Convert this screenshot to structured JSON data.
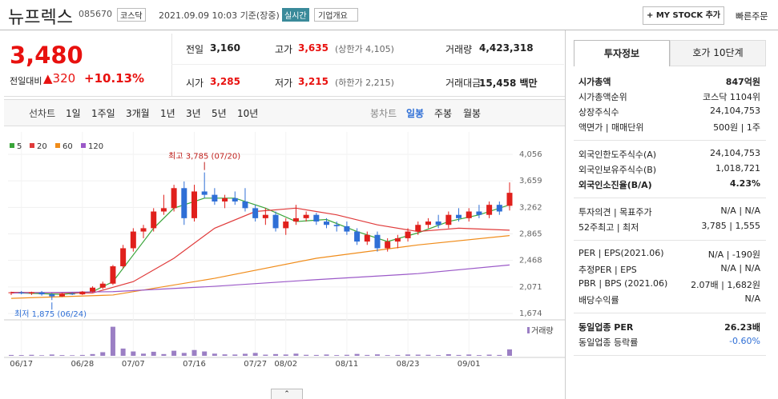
{
  "header": {
    "name": "뉴프렉스",
    "code": "085670",
    "market": "코스닥",
    "time": "2021.09.09 10:03 기준(장중)",
    "realtime": "실시간",
    "company": "기업개요",
    "mystock": "+ MY STOCK 추가",
    "order": "빠른주문"
  },
  "quote": {
    "price": "3,480",
    "change_label": "전일대비",
    "change": "▲320",
    "rate": "+10.13%",
    "color": "#e8110f",
    "cells": [
      {
        "label": "전일",
        "value": "3,160"
      },
      {
        "label": "고가",
        "value": "3,635",
        "extra": "(상한가 4,105)",
        "color": "#e8110f"
      },
      {
        "label": "거래량",
        "value": "4,423,318"
      },
      {
        "label": "시가",
        "value": "3,285",
        "color": "#e8110f"
      },
      {
        "label": "저가",
        "value": "3,215",
        "extra": "(하한가 2,215)",
        "color": "#e8110f"
      },
      {
        "label": "거래대금",
        "value": "15,458 백만"
      }
    ]
  },
  "tabs": {
    "line": "선차트",
    "periods": [
      "1일",
      "1주일",
      "3개월",
      "1년",
      "3년",
      "5년",
      "10년"
    ],
    "candle": "봉차트",
    "candle_periods": [
      "일봉",
      "주봉",
      "월봉"
    ]
  },
  "chart_data": {
    "type": "candlestick",
    "up_color": "#e0201c",
    "down_color": "#2f6fd6",
    "candles": [
      [
        1980,
        2000,
        1950,
        1990
      ],
      [
        1990,
        2010,
        1960,
        1975
      ],
      [
        1975,
        2000,
        1950,
        1990
      ],
      [
        1990,
        2010,
        1940,
        1960
      ],
      [
        1960,
        1980,
        1875,
        1930
      ],
      [
        1930,
        1980,
        1920,
        1970
      ],
      [
        1970,
        1990,
        1950,
        1960
      ],
      [
        1960,
        2010,
        1950,
        2000
      ],
      [
        2000,
        2080,
        1990,
        2060
      ],
      [
        2060,
        2150,
        2040,
        2120
      ],
      [
        2120,
        2400,
        2100,
        2380
      ],
      [
        2380,
        2700,
        2350,
        2650
      ],
      [
        2650,
        2950,
        2600,
        2900
      ],
      [
        2900,
        3000,
        2800,
        2950
      ],
      [
        2950,
        3250,
        2900,
        3200
      ],
      [
        3200,
        3450,
        3150,
        3250
      ],
      [
        3250,
        3600,
        3200,
        3550
      ],
      [
        3550,
        3650,
        3000,
        3100
      ],
      [
        3100,
        3600,
        3050,
        3500
      ],
      [
        3500,
        3785,
        3400,
        3450
      ],
      [
        3450,
        3550,
        3300,
        3350
      ],
      [
        3350,
        3450,
        3250,
        3400
      ],
      [
        3400,
        3500,
        3300,
        3350
      ],
      [
        3350,
        3550,
        3200,
        3250
      ],
      [
        3250,
        3300,
        3050,
        3100
      ],
      [
        3100,
        3250,
        3000,
        3150
      ],
      [
        3150,
        3200,
        2900,
        2950
      ],
      [
        2950,
        3100,
        2850,
        3050
      ],
      [
        3050,
        3300,
        3000,
        3100
      ],
      [
        3100,
        3200,
        3050,
        3150
      ],
      [
        3150,
        3180,
        3000,
        3050
      ],
      [
        3050,
        3100,
        2950,
        3000
      ],
      [
        3000,
        3050,
        2900,
        2980
      ],
      [
        2980,
        3050,
        2850,
        2900
      ],
      [
        2900,
        2950,
        2700,
        2750
      ],
      [
        2750,
        2900,
        2700,
        2850
      ],
      [
        2850,
        2900,
        2600,
        2650
      ],
      [
        2650,
        2800,
        2600,
        2750
      ],
      [
        2750,
        2850,
        2650,
        2800
      ],
      [
        2800,
        2950,
        2750,
        2900
      ],
      [
        2900,
        3050,
        2850,
        3000
      ],
      [
        3000,
        3100,
        2950,
        3050
      ],
      [
        3050,
        3150,
        2950,
        3000
      ],
      [
        3000,
        3200,
        2950,
        3150
      ],
      [
        3150,
        3250,
        3050,
        3100
      ],
      [
        3100,
        3250,
        3050,
        3200
      ],
      [
        3200,
        3300,
        3100,
        3150
      ],
      [
        3150,
        3350,
        3100,
        3300
      ],
      [
        3300,
        3350,
        3150,
        3200
      ],
      [
        3285,
        3635,
        3215,
        3480
      ]
    ],
    "volume": [
      600000,
      500000,
      700000,
      400000,
      900000,
      500000,
      400000,
      600000,
      1200000,
      2500000,
      20000000,
      5000000,
      3000000,
      1500000,
      2800000,
      1200000,
      3500000,
      2000000,
      4000000,
      3000000,
      1500000,
      1000000,
      900000,
      1400000,
      2000000,
      800000,
      1200000,
      900000,
      1500000,
      700000,
      600000,
      900000,
      500000,
      700000,
      1300000,
      600000,
      1000000,
      500000,
      600000,
      900000,
      800000,
      700000,
      500000,
      1100000,
      600000,
      900000,
      500000,
      800000,
      600000,
      4423318
    ],
    "volume_ylim": [
      0,
      22000000
    ],
    "volume_label": "거래량",
    "xlim": [
      0,
      49
    ],
    "ylim": [
      1674,
      4056
    ],
    "yticks": [
      {
        "value": 4056,
        "label": "4,056"
      },
      {
        "value": 3659,
        "label": "3,659"
      },
      {
        "value": 3262,
        "label": "3,262"
      },
      {
        "value": 2865,
        "label": "2,865"
      },
      {
        "value": 2468,
        "label": "2,468"
      },
      {
        "value": 2071,
        "label": "2,071"
      },
      {
        "value": 1674,
        "label": "1,674"
      }
    ],
    "xticks": [
      {
        "value": 1,
        "label": "06/17"
      },
      {
        "value": 7,
        "label": "06/28"
      },
      {
        "value": 12,
        "label": "07/07"
      },
      {
        "value": 18,
        "label": "07/16"
      },
      {
        "value": 24,
        "label": "07/27"
      },
      {
        "value": 27,
        "label": "08/02"
      },
      {
        "value": 33,
        "label": "08/11"
      },
      {
        "value": 39,
        "label": "08/23"
      },
      {
        "value": 45,
        "label": "09/01"
      }
    ],
    "grid": true,
    "series": [
      {
        "name": "5",
        "color": "#3aa53a",
        "x": [
          0,
          5,
          8,
          10,
          12,
          14,
          16,
          19,
          22,
          25,
          28,
          31,
          34,
          37,
          40,
          43,
          46,
          49
        ],
        "values": [
          1985,
          1960,
          2000,
          2150,
          2550,
          2950,
          3250,
          3400,
          3400,
          3250,
          3050,
          3080,
          2900,
          2750,
          2880,
          3050,
          3150,
          3300
        ]
      },
      {
        "name": "20",
        "color": "#e03b3b",
        "x": [
          0,
          8,
          12,
          16,
          20,
          24,
          28,
          32,
          36,
          40,
          44,
          49
        ],
        "values": [
          1990,
          1980,
          2150,
          2500,
          2950,
          3200,
          3250,
          3150,
          3000,
          2900,
          2950,
          2920
        ]
      },
      {
        "name": "60",
        "color": "#f08c1a",
        "x": [
          0,
          10,
          20,
          30,
          40,
          49
        ],
        "values": [
          1900,
          1950,
          2200,
          2500,
          2700,
          2840
        ]
      },
      {
        "name": "120",
        "color": "#9b59c8",
        "x": [
          0,
          10,
          20,
          30,
          40,
          49
        ],
        "values": [
          1980,
          2000,
          2080,
          2180,
          2270,
          2400
        ]
      }
    ],
    "annotations": [
      {
        "text": "최고 3,785 (07/20)",
        "color": "#c0201c"
      },
      {
        "text": "최저 1,875 (06/24)",
        "color": "#2f6fd6"
      }
    ]
  },
  "info": {
    "tabs": [
      "투자정보",
      "호가 10단계"
    ],
    "sections": [
      [
        {
          "label": "시가총액",
          "value": "847억원",
          "bold": true
        },
        {
          "label": "시가총액순위",
          "value": "코스닥 1104위"
        },
        {
          "label": "상장주식수",
          "value": "24,104,753"
        },
        {
          "label": "액면가 | 매매단위",
          "value": "500원 | 1주"
        }
      ],
      [
        {
          "label": "외국인한도주식수(A)",
          "value": "24,104,753"
        },
        {
          "label": "외국인보유주식수(B)",
          "value": "1,018,721"
        },
        {
          "label": "외국인소진율(B/A)",
          "value": "4.23%",
          "bold": true
        }
      ],
      [
        {
          "label": "투자의견 | 목표주가",
          "value": "N/A | N/A"
        },
        {
          "label": "52주최고 | 최저",
          "value": "3,785 | 1,555"
        }
      ],
      [
        {
          "label": "PER | EPS(2021.06)",
          "value": "N/A | -190원"
        },
        {
          "label": "추정PER | EPS",
          "value": "N/A | N/A"
        },
        {
          "label": "PBR | BPS (2021.06)",
          "value": "2.07배 | 1,682원"
        },
        {
          "label": "배당수익률",
          "value": "N/A"
        }
      ],
      [
        {
          "label": "동일업종 PER",
          "value": "26.23배",
          "bold": true
        },
        {
          "label": "동일업종 등락률",
          "value": "-0.60%",
          "color": "#2f6fd6"
        }
      ]
    ]
  }
}
